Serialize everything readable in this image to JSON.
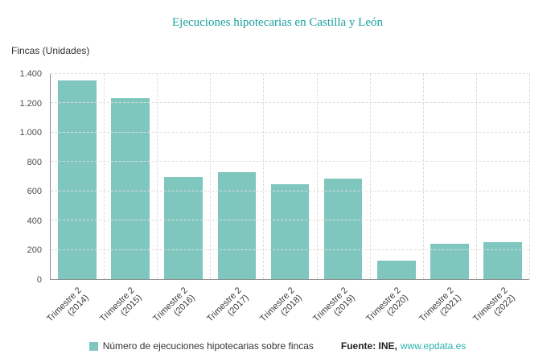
{
  "title": "Ejecuciones hipotecarias en Castilla y León",
  "y_axis_title": "Fincas (Unidades)",
  "legend": {
    "series_label": "Número de ejecuciones hipotecarias sobre fincas",
    "source_prefix": "Fuente: INE,",
    "source_link": "www.epdata.es"
  },
  "colors": {
    "bar": "#7fc7be",
    "title": "#18a09e",
    "link": "#2ab0ad",
    "grid": "#dcdcdc",
    "axis": "#8c8c8c",
    "text": "#333333"
  },
  "chart_data": {
    "type": "bar",
    "title": "Ejecuciones hipotecarias en Castilla y León",
    "ylabel": "Fincas (Unidades)",
    "categories": [
      "Trimestre 2\n(2014)",
      "Trimestre 2\n(2015)",
      "Trimestre 2\n(2016)",
      "Trimestre 2\n(2017)",
      "Trimestre 2\n(2018)",
      "Trimestre 2\n(2019)",
      "Trimestre 2\n(2020)",
      "Trimestre 2\n(2021)",
      "Trimestre 2\n(2022)"
    ],
    "values": [
      1355,
      1235,
      700,
      730,
      650,
      685,
      128,
      240,
      250
    ],
    "series_name": "Número de ejecuciones hipotecarias sobre fincas",
    "ylim": [
      0,
      1400
    ],
    "ytick_step": 200,
    "ytick_labels": [
      "0",
      "200",
      "400",
      "600",
      "800",
      "1.000",
      "1.200",
      "1.400"
    ],
    "grid": true,
    "legend_position": "bottom"
  }
}
